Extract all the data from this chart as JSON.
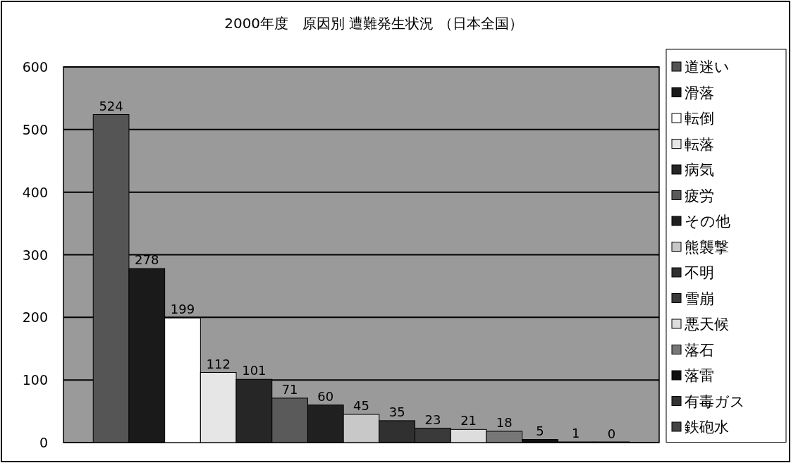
{
  "chart_data": {
    "type": "bar",
    "title": "2000年度　原因別 遭難発生状況 （日本全国）",
    "categories": [
      null
    ],
    "series": [
      {
        "name": "道迷い",
        "color": "#555555",
        "values": [
          524
        ]
      },
      {
        "name": "滑落",
        "color": "#1a1a1a",
        "values": [
          278
        ]
      },
      {
        "name": "転倒",
        "color": "#ffffff",
        "values": [
          199
        ]
      },
      {
        "name": "転落",
        "color": "#e6e6e6",
        "values": [
          112
        ]
      },
      {
        "name": "病気",
        "color": "#262626",
        "values": [
          101
        ]
      },
      {
        "name": "疲労",
        "color": "#5a5a5a",
        "values": [
          71
        ]
      },
      {
        "name": "その他",
        "color": "#202020",
        "values": [
          60
        ]
      },
      {
        "name": "熊襲撃",
        "color": "#c8c8c8",
        "values": [
          45
        ]
      },
      {
        "name": "不明",
        "color": "#303030",
        "values": [
          35
        ]
      },
      {
        "name": "雪崩",
        "color": "#3a3a3a",
        "values": [
          23
        ]
      },
      {
        "name": "悪天候",
        "color": "#dddddd",
        "values": [
          21
        ]
      },
      {
        "name": "落石",
        "color": "#777777",
        "values": [
          18
        ]
      },
      {
        "name": "落雷",
        "color": "#101010",
        "values": [
          5
        ]
      },
      {
        "name": "有毒ガス",
        "color": "#333333",
        "values": [
          1
        ]
      },
      {
        "name": "鉄砲水",
        "color": "#444444",
        "values": [
          0
        ]
      }
    ],
    "ylim": [
      0,
      600
    ],
    "yticks": [
      0,
      100,
      200,
      300,
      400,
      500,
      600
    ],
    "grid": "y",
    "legend": "right",
    "data_labels": true
  }
}
